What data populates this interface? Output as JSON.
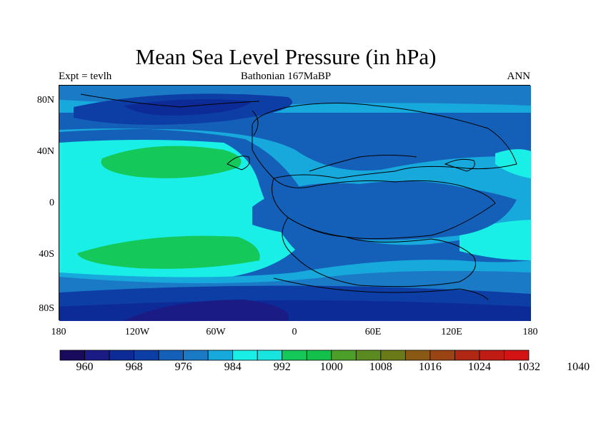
{
  "title": "Mean Sea Level Pressure (in hPa)",
  "subtitle_left": "Expt = tevlh",
  "subtitle_center": "Bathonian 167MaBP",
  "subtitle_right": "ANN",
  "y_tick_labels": [
    "80N",
    "40N",
    "0",
    "40S",
    "80S"
  ],
  "x_tick_labels": [
    "180",
    "120W",
    "60W",
    "0",
    "60E",
    "120E",
    "180"
  ],
  "colorbar": {
    "labels": [
      "960",
      "968",
      "976",
      "984",
      "992",
      "1000",
      "1008",
      "1016",
      "1024",
      "1032",
      "1040"
    ],
    "colors": [
      "#1a0a5e",
      "#1b1b86",
      "#0c2b96",
      "#0d3ea6",
      "#1460b8",
      "#1b7ac6",
      "#17a9dc",
      "#19efe6",
      "#19e5e0",
      "#14c95a",
      "#14c04c",
      "#4ca02a",
      "#5a8a20",
      "#6a7a18",
      "#8a5a14",
      "#9a4414",
      "#b02814",
      "#c01c14",
      "#d41414"
    ]
  },
  "colors": {
    "level_976": "#0c2b96",
    "level_984": "#1460b8",
    "level_992": "#17a9dc",
    "level_1000": "#19efe6",
    "level_1008": "#14c95a"
  }
}
